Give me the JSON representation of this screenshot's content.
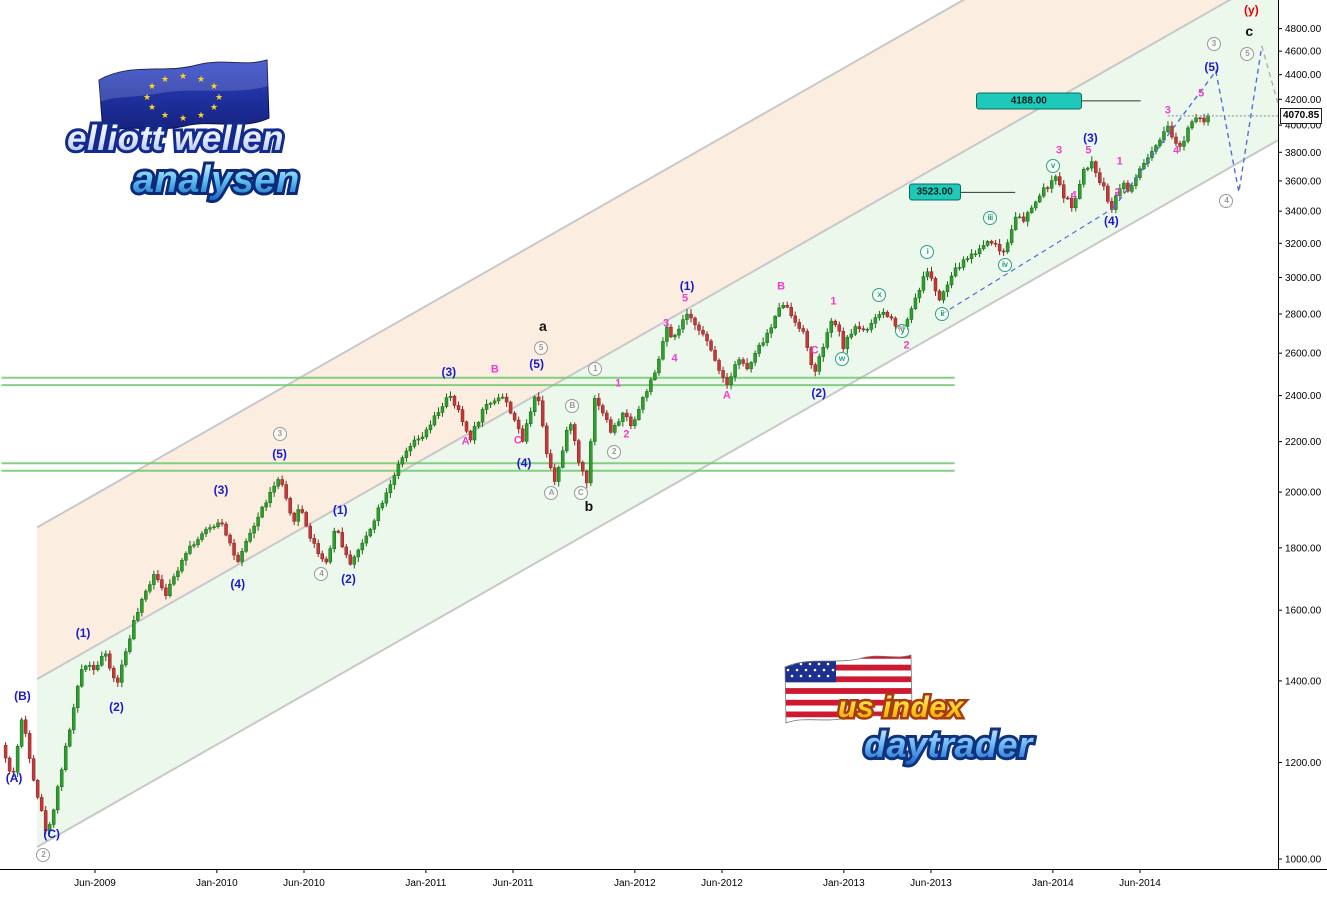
{
  "logos": {
    "eu": {
      "line1": "elliott wellen",
      "line2": "analysen"
    },
    "us": {
      "line1": "us index",
      "line2": "daytrader"
    }
  },
  "colors": {
    "candle_up": "#2f9e2f",
    "candle_up_stroke": "#156a15",
    "candle_down": "#c03a3a",
    "candle_down_stroke": "#8f2121",
    "channel_line": "#c8c8c8",
    "channel_fill_upper": "rgba(247,224,198,0.55)",
    "channel_fill_lower": "rgba(222,242,222,0.55)",
    "sr_line": "rgba(110,200,110,0.85)",
    "projection_blue": "#4f6fd8",
    "projection_gray": "#b0b0b0",
    "target_box_bg": "#1fc9b9",
    "label_blue": "#1a1acd",
    "label_magenta": "#f23cd0",
    "label_gray": "#9a9a9a",
    "label_teal": "#2aa186",
    "label_black": "#111111",
    "label_red": "#e80000",
    "axis_text": "#000000"
  },
  "axis": {
    "y_tick_labels": [
      "4800.00",
      "4600.00",
      "4400.00",
      "4200.00",
      "4000.00",
      "3800.00",
      "3600.00",
      "3400.00",
      "3200.00",
      "3000.00",
      "2800.00",
      "2600.00",
      "2400.00",
      "2200.00",
      "2000.00",
      "1800.00",
      "1600.00",
      "1400.00",
      "1200.00",
      "1000.00"
    ],
    "x_ticks": [
      {
        "label": "Jun-2009",
        "t": 2009.417
      },
      {
        "label": "Jan-2010",
        "t": 2010.0
      },
      {
        "label": "Jun-2010",
        "t": 2010.417
      },
      {
        "label": "Jan-2011",
        "t": 2011.0
      },
      {
        "label": "Jun-2011",
        "t": 2011.417
      },
      {
        "label": "Jan-2012",
        "t": 2012.0
      },
      {
        "label": "Jun-2012",
        "t": 2012.417
      },
      {
        "label": "Jan-2013",
        "t": 2013.0
      },
      {
        "label": "Jun-2013",
        "t": 2013.417
      },
      {
        "label": "Jan-2014",
        "t": 2014.0
      },
      {
        "label": "Jun-2014",
        "t": 2014.417
      }
    ]
  },
  "chart_data": {
    "type": "candlestick",
    "y_scale": "log",
    "bar_interval_years": 0.019178,
    "t_start": 2008.97,
    "t_end": 2014.745,
    "last_price": 4070.85,
    "last_price_label": "4070.85",
    "price_path": [
      [
        2008.97,
        1240
      ],
      [
        2009.02,
        1160
      ],
      [
        2009.07,
        1310
      ],
      [
        2009.13,
        1150
      ],
      [
        2009.19,
        1043
      ],
      [
        2009.28,
        1240
      ],
      [
        2009.36,
        1450
      ],
      [
        2009.42,
        1435
      ],
      [
        2009.46,
        1478
      ],
      [
        2009.52,
        1387
      ],
      [
        2009.6,
        1560
      ],
      [
        2009.7,
        1720
      ],
      [
        2009.76,
        1650
      ],
      [
        2009.85,
        1790
      ],
      [
        2009.93,
        1845
      ],
      [
        2010.02,
        1900
      ],
      [
        2010.1,
        1745
      ],
      [
        2010.16,
        1850
      ],
      [
        2010.23,
        1960
      ],
      [
        2010.3,
        2055
      ],
      [
        2010.36,
        1890
      ],
      [
        2010.4,
        1945
      ],
      [
        2010.45,
        1830
      ],
      [
        2010.52,
        1745
      ],
      [
        2010.57,
        1880
      ],
      [
        2010.63,
        1745
      ],
      [
        2010.7,
        1815
      ],
      [
        2010.78,
        1950
      ],
      [
        2010.85,
        2070
      ],
      [
        2010.92,
        2175
      ],
      [
        2011.0,
        2235
      ],
      [
        2011.06,
        2330
      ],
      [
        2011.11,
        2400
      ],
      [
        2011.16,
        2320
      ],
      [
        2011.21,
        2210
      ],
      [
        2011.28,
        2350
      ],
      [
        2011.36,
        2405
      ],
      [
        2011.42,
        2310
      ],
      [
        2011.46,
        2195
      ],
      [
        2011.53,
        2438
      ],
      [
        2011.58,
        2150
      ],
      [
        2011.62,
        2040
      ],
      [
        2011.66,
        2180
      ],
      [
        2011.69,
        2300
      ],
      [
        2011.73,
        2120
      ],
      [
        2011.77,
        2045
      ],
      [
        2011.81,
        2400
      ],
      [
        2011.85,
        2320
      ],
      [
        2011.89,
        2235
      ],
      [
        2011.94,
        2320
      ],
      [
        2011.99,
        2270
      ],
      [
        2012.05,
        2415
      ],
      [
        2012.1,
        2500
      ],
      [
        2012.15,
        2735
      ],
      [
        2012.18,
        2650
      ],
      [
        2012.24,
        2790
      ],
      [
        2012.3,
        2745
      ],
      [
        2012.36,
        2620
      ],
      [
        2012.44,
        2450
      ],
      [
        2012.49,
        2580
      ],
      [
        2012.54,
        2520
      ],
      [
        2012.6,
        2640
      ],
      [
        2012.66,
        2740
      ],
      [
        2012.7,
        2880
      ],
      [
        2012.75,
        2790
      ],
      [
        2012.8,
        2720
      ],
      [
        2012.86,
        2495
      ],
      [
        2012.9,
        2630
      ],
      [
        2012.95,
        2780
      ],
      [
        2013.0,
        2630
      ],
      [
        2013.05,
        2735
      ],
      [
        2013.12,
        2720
      ],
      [
        2013.18,
        2815
      ],
      [
        2013.24,
        2760
      ],
      [
        2013.28,
        2715
      ],
      [
        2013.34,
        2880
      ],
      [
        2013.4,
        3045
      ],
      [
        2013.46,
        2865
      ],
      [
        2013.52,
        3020
      ],
      [
        2013.58,
        3105
      ],
      [
        2013.64,
        3155
      ],
      [
        2013.7,
        3230
      ],
      [
        2013.74,
        3160
      ],
      [
        2013.77,
        3150
      ],
      [
        2013.82,
        3380
      ],
      [
        2013.86,
        3330
      ],
      [
        2013.91,
        3450
      ],
      [
        2013.97,
        3560
      ],
      [
        2014.02,
        3620
      ],
      [
        2014.06,
        3480
      ],
      [
        2014.1,
        3430
      ],
      [
        2014.15,
        3675
      ],
      [
        2014.19,
        3720
      ],
      [
        2014.24,
        3560
      ],
      [
        2014.28,
        3420
      ],
      [
        2014.33,
        3600
      ],
      [
        2014.37,
        3520
      ],
      [
        2014.42,
        3700
      ],
      [
        2014.47,
        3780
      ],
      [
        2014.52,
        3900
      ],
      [
        2014.55,
        3975
      ],
      [
        2014.58,
        3880
      ],
      [
        2014.61,
        3830
      ],
      [
        2014.65,
        3995
      ],
      [
        2014.69,
        4090
      ],
      [
        2014.72,
        4040
      ],
      [
        2014.745,
        4070.85
      ]
    ],
    "targets": [
      {
        "label": "4188.00",
        "price": 4188.0,
        "box_t1": 2013.63,
        "box_t2": 2014.13,
        "line_t2": 2014.42
      },
      {
        "label": "3523.00",
        "price": 3523.0,
        "box_t1": 2013.31,
        "box_t2": 2013.55,
        "line_t2": 2013.82
      }
    ],
    "sr_levels": [
      {
        "price": 2482,
        "t1": 2008.97,
        "t2": 2013.53
      },
      {
        "price": 2448,
        "t1": 2008.97,
        "t2": 2013.53
      },
      {
        "price": 2112,
        "t1": 2008.97,
        "t2": 2013.53
      },
      {
        "price": 2082,
        "t1": 2008.97,
        "t2": 2013.53
      }
    ],
    "channel": {
      "lower": [
        2009.157,
        1027,
        2015.08,
        3890
      ],
      "middle": [
        2009.157,
        1410,
        2015.08,
        5340
      ],
      "upper": [
        2009.157,
        1878,
        2013.566,
        5060
      ],
      "draw_from_t": 2009.14
    },
    "projections": {
      "blue_support": [
        [
          2013.47,
          2800
        ],
        [
          2014.29,
          3420
        ]
      ],
      "blue_zigzag": [
        [
          2014.29,
          3420
        ],
        [
          2014.78,
          4430
        ],
        [
          2014.89,
          3525
        ],
        [
          2015.0,
          4645
        ]
      ],
      "gray_tail": [
        [
          2015.0,
          4645
        ],
        [
          2015.115,
          3950
        ]
      ]
    },
    "wave_labels": [
      {
        "t": 2009.03,
        "p": 1165,
        "text": "(A)",
        "style": "blue"
      },
      {
        "t": 2009.07,
        "p": 1360,
        "text": "(B)",
        "style": "blue"
      },
      {
        "t": 2009.21,
        "p": 1048,
        "text": "(C)",
        "style": "blue"
      },
      {
        "t": 2009.36,
        "p": 1532,
        "text": "(1)",
        "style": "blue"
      },
      {
        "t": 2009.52,
        "p": 1332,
        "text": "(2)",
        "style": "blue"
      },
      {
        "t": 2010.02,
        "p": 2008,
        "text": "(3)",
        "style": "blue"
      },
      {
        "t": 2010.1,
        "p": 1682,
        "text": "(4)",
        "style": "blue"
      },
      {
        "t": 2010.3,
        "p": 2148,
        "text": "(5)",
        "style": "blue"
      },
      {
        "t": 2010.59,
        "p": 1935,
        "text": "(1)",
        "style": "blue"
      },
      {
        "t": 2010.63,
        "p": 1698,
        "text": "(2)",
        "style": "blue"
      },
      {
        "t": 2011.11,
        "p": 2508,
        "text": "(3)",
        "style": "blue"
      },
      {
        "t": 2011.47,
        "p": 2112,
        "text": "(4)",
        "style": "blue"
      },
      {
        "t": 2011.53,
        "p": 2548,
        "text": "(5)",
        "style": "blue"
      },
      {
        "t": 2012.25,
        "p": 2952,
        "text": "(1)",
        "style": "blue"
      },
      {
        "t": 2012.88,
        "p": 2412,
        "text": "(2)",
        "style": "blue"
      },
      {
        "t": 2014.18,
        "p": 3905,
        "text": "(3)",
        "style": "blue"
      },
      {
        "t": 2014.28,
        "p": 3338,
        "text": "(4)",
        "style": "blue"
      },
      {
        "t": 2014.76,
        "p": 4468,
        "text": "(5)",
        "style": "blue"
      },
      {
        "t": 2011.19,
        "p": 2198,
        "text": "A",
        "style": "magenta"
      },
      {
        "t": 2011.33,
        "p": 2518,
        "text": "B",
        "style": "magenta"
      },
      {
        "t": 2011.44,
        "p": 2202,
        "text": "C",
        "style": "magenta"
      },
      {
        "t": 2011.92,
        "p": 2452,
        "text": "1",
        "style": "magenta"
      },
      {
        "t": 2011.96,
        "p": 2228,
        "text": "2",
        "style": "magenta"
      },
      {
        "t": 2012.15,
        "p": 2748,
        "text": "3",
        "style": "magenta"
      },
      {
        "t": 2012.19,
        "p": 2572,
        "text": "4",
        "style": "magenta"
      },
      {
        "t": 2012.24,
        "p": 2878,
        "text": "5",
        "style": "magenta"
      },
      {
        "t": 2012.44,
        "p": 2398,
        "text": "A",
        "style": "magenta"
      },
      {
        "t": 2012.7,
        "p": 2948,
        "text": "B",
        "style": "magenta"
      },
      {
        "t": 2012.86,
        "p": 2612,
        "text": "C",
        "style": "magenta"
      },
      {
        "t": 2012.95,
        "p": 2862,
        "text": "1",
        "style": "magenta"
      },
      {
        "t": 2013.3,
        "p": 2638,
        "text": "2",
        "style": "magenta"
      },
      {
        "t": 2014.03,
        "p": 3812,
        "text": "3",
        "style": "magenta"
      },
      {
        "t": 2014.1,
        "p": 3498,
        "text": "4",
        "style": "magenta"
      },
      {
        "t": 2014.17,
        "p": 3812,
        "text": "5",
        "style": "magenta"
      },
      {
        "t": 2014.32,
        "p": 3732,
        "text": "1",
        "style": "magenta"
      },
      {
        "t": 2014.31,
        "p": 3518,
        "text": "2",
        "style": "magenta"
      },
      {
        "t": 2014.55,
        "p": 4112,
        "text": "3",
        "style": "magenta"
      },
      {
        "t": 2014.59,
        "p": 3812,
        "text": "4",
        "style": "magenta"
      },
      {
        "t": 2014.71,
        "p": 4242,
        "text": "5",
        "style": "magenta"
      },
      {
        "t": 2009.17,
        "p": 1008,
        "text": "2",
        "style": "gray-circle"
      },
      {
        "t": 2010.3,
        "p": 2232,
        "text": "3",
        "style": "gray-circle"
      },
      {
        "t": 2010.5,
        "p": 1712,
        "text": "4",
        "style": "gray-circle"
      },
      {
        "t": 2011.55,
        "p": 2628,
        "text": "5",
        "style": "gray-circle"
      },
      {
        "t": 2011.6,
        "p": 1998,
        "text": "A",
        "style": "gray-circle"
      },
      {
        "t": 2011.7,
        "p": 2352,
        "text": "B",
        "style": "gray-circle"
      },
      {
        "t": 2011.74,
        "p": 1998,
        "text": "C",
        "style": "gray-circle"
      },
      {
        "t": 2011.81,
        "p": 2522,
        "text": "1",
        "style": "gray-circle"
      },
      {
        "t": 2011.9,
        "p": 2158,
        "text": "2",
        "style": "gray-circle"
      },
      {
        "t": 2014.77,
        "p": 4662,
        "text": "3",
        "style": "gray-circle"
      },
      {
        "t": 2014.83,
        "p": 3468,
        "text": "4",
        "style": "gray-circle"
      },
      {
        "t": 2014.93,
        "p": 4572,
        "text": "5",
        "style": "gray-circle"
      },
      {
        "t": 2012.99,
        "p": 2572,
        "text": "w",
        "style": "teal-circle"
      },
      {
        "t": 2013.17,
        "p": 2902,
        "text": "x",
        "style": "teal-circle"
      },
      {
        "t": 2013.28,
        "p": 2712,
        "text": "y",
        "style": "teal-circle"
      },
      {
        "t": 2013.4,
        "p": 3148,
        "text": "i",
        "style": "teal-circle"
      },
      {
        "t": 2013.47,
        "p": 2798,
        "text": "ii",
        "style": "teal-circle"
      },
      {
        "t": 2013.7,
        "p": 3358,
        "text": "iii",
        "style": "teal-circle"
      },
      {
        "t": 2013.77,
        "p": 3072,
        "text": "iv",
        "style": "teal-circle"
      },
      {
        "t": 2014.0,
        "p": 3702,
        "text": "v",
        "style": "teal-circle"
      },
      {
        "t": 2011.56,
        "p": 2738,
        "text": "a",
        "style": "black"
      },
      {
        "t": 2011.78,
        "p": 1948,
        "text": "b",
        "style": "black"
      },
      {
        "t": 2014.94,
        "p": 4782,
        "text": "c",
        "style": "black"
      },
      {
        "t": 2014.95,
        "p": 4968,
        "text": "(y)",
        "style": "red"
      }
    ]
  }
}
